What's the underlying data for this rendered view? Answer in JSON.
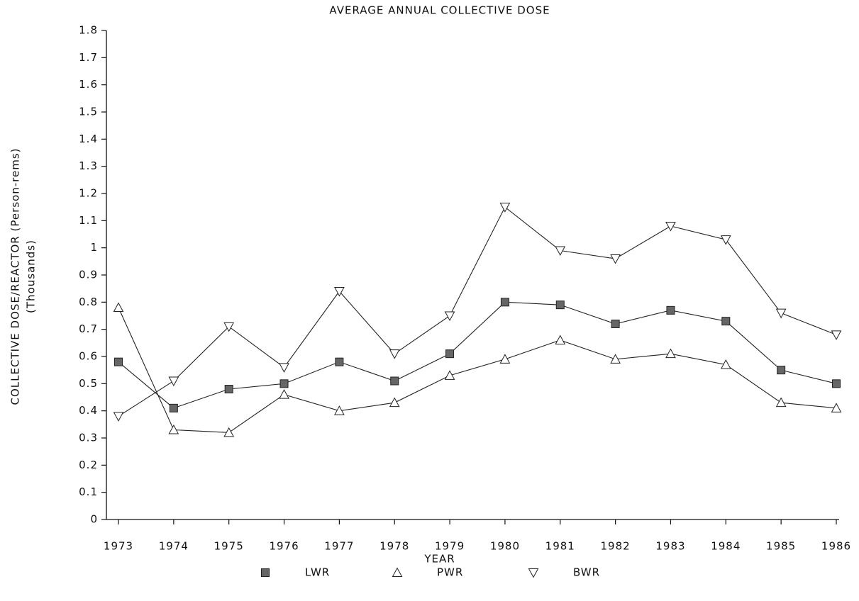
{
  "chart_data": {
    "type": "line",
    "title": "AVERAGE ANNUAL COLLECTIVE DOSE",
    "x_label": "YEAR",
    "y_label": [
      "COLLECTIVE DOSE/REACTOR (Person-rems)",
      "(Thousands)"
    ],
    "x": [
      1973,
      1974,
      1975,
      1976,
      1977,
      1978,
      1979,
      1980,
      1981,
      1982,
      1983,
      1984,
      1985,
      1986
    ],
    "xlim": [
      1973,
      1986
    ],
    "xticks": [
      1973,
      1974,
      1975,
      1976,
      1977,
      1978,
      1979,
      1980,
      1981,
      1982,
      1983,
      1984,
      1985,
      1986
    ],
    "ylim": [
      0,
      1.8
    ],
    "yticks": [
      0,
      0.1,
      0.2,
      0.3,
      0.4,
      0.5,
      0.6,
      0.7,
      0.8,
      0.9,
      1,
      1.1,
      1.2,
      1.3,
      1.4,
      1.5,
      1.6,
      1.7,
      1.8
    ],
    "grid": false,
    "legend": "bottom",
    "series": [
      {
        "name": "LWR",
        "color": "#222222",
        "marker": "square",
        "values": [
          0.58,
          0.41,
          0.48,
          0.5,
          0.58,
          0.51,
          0.61,
          0.8,
          0.79,
          0.72,
          0.77,
          0.73,
          0.55,
          0.5
        ]
      },
      {
        "name": "PWR",
        "color": "#222222",
        "marker": "triangle-up",
        "values": [
          0.78,
          0.33,
          0.32,
          0.46,
          0.4,
          0.43,
          0.53,
          0.59,
          0.66,
          0.59,
          0.61,
          0.57,
          0.43,
          0.41
        ]
      },
      {
        "name": "BWR",
        "color": "#222222",
        "marker": "triangle-down",
        "values": [
          0.38,
          0.51,
          0.71,
          0.56,
          0.84,
          0.61,
          0.75,
          1.15,
          0.99,
          0.96,
          1.08,
          1.03,
          0.76,
          0.68
        ]
      }
    ]
  }
}
